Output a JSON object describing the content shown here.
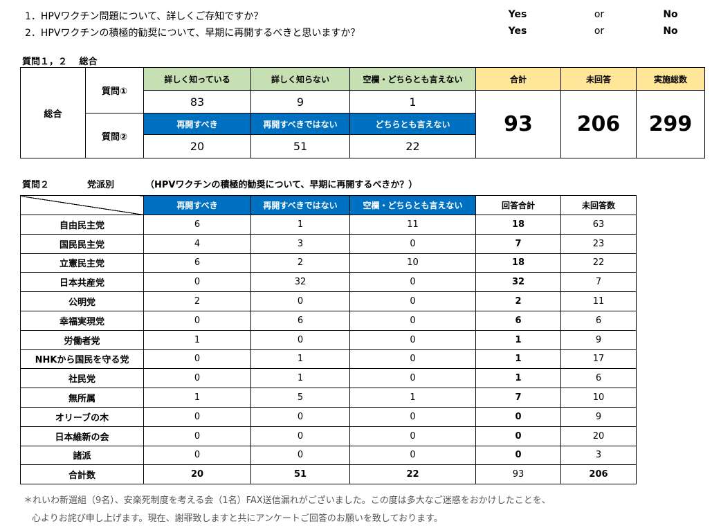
{
  "questions": [
    {
      "text": "1．HPVワクチン問題について、詳しくご存知ですか？",
      "yes": "Yes",
      "or": "or",
      "no": "No"
    },
    {
      "text": "2．HPVワクチンの積極的勧奨について、早期に再開するべきと思いますか？",
      "yes": "Yes",
      "or": "or",
      "no": "No"
    }
  ],
  "summary": {
    "section_title": "質問１，２　 総合",
    "row_label": "総合",
    "q1_label": "質問①",
    "q2_label": "質問②",
    "q1_headers": [
      "詳しく知っている",
      "詳しく知らない",
      "空欄・どちらとも言えない"
    ],
    "q1_values": [
      "83",
      "9",
      "1"
    ],
    "q2_headers": [
      "再開すべき",
      "再開すべきではない",
      "どちらとも言えない"
    ],
    "q2_values": [
      "20",
      "51",
      "22"
    ],
    "total_headers": [
      "合計",
      "未回答",
      "実施総数"
    ],
    "total_values": [
      "93",
      "206",
      "299"
    ]
  },
  "party": {
    "section_title": "質問２",
    "section_sub": "党派別",
    "section_desc": "（HPVワクチンの積極的勧奨について、早期に再開するべきか？）",
    "headers": [
      "再開すべき",
      "再開すべきではない",
      "空欄・どちらとも言えない",
      "回答合計",
      "未回答数"
    ],
    "rows": [
      {
        "name": "自由民主党",
        "values": [
          "6",
          "1",
          "11",
          "18",
          "63"
        ]
      },
      {
        "name": "国民民主党",
        "values": [
          "4",
          "3",
          "0",
          "7",
          "23"
        ]
      },
      {
        "name": "立憲民主党",
        "values": [
          "6",
          "2",
          "10",
          "18",
          "22"
        ]
      },
      {
        "name": "日本共産党",
        "values": [
          "0",
          "32",
          "0",
          "32",
          "7"
        ]
      },
      {
        "name": "公明党",
        "values": [
          "2",
          "0",
          "0",
          "2",
          "11"
        ]
      },
      {
        "name": "幸福実現党",
        "values": [
          "0",
          "6",
          "0",
          "6",
          "6"
        ]
      },
      {
        "name": "労働者党",
        "values": [
          "1",
          "0",
          "0",
          "1",
          "9"
        ]
      },
      {
        "name": "NHKから国民を守る党",
        "values": [
          "0",
          "1",
          "0",
          "1",
          "17"
        ]
      },
      {
        "name": "社民党",
        "values": [
          "0",
          "1",
          "0",
          "1",
          "6"
        ]
      },
      {
        "name": "無所属",
        "values": [
          "1",
          "5",
          "1",
          "7",
          "10"
        ]
      },
      {
        "name": "オリーブの木",
        "values": [
          "0",
          "0",
          "0",
          "0",
          "9"
        ]
      },
      {
        "name": "日本維新の会",
        "values": [
          "0",
          "0",
          "0",
          "0",
          "20"
        ]
      },
      {
        "name": "諸派",
        "values": [
          "0",
          "0",
          "0",
          "0",
          "3"
        ]
      }
    ],
    "total_row": {
      "name": "合計数",
      "values": [
        "20",
        "51",
        "22",
        "93",
        "206"
      ]
    }
  },
  "notes": [
    "＊れいわ新選組（9名）、安楽死制度を考える会（1名）FAX送信漏れがございました。この度は多大なご迷惑をおかけしたことを、",
    "心よりお詫び申し上げます。現在、謝罪致しますと共にアンケートご回答のお願いを致しております。"
  ]
}
